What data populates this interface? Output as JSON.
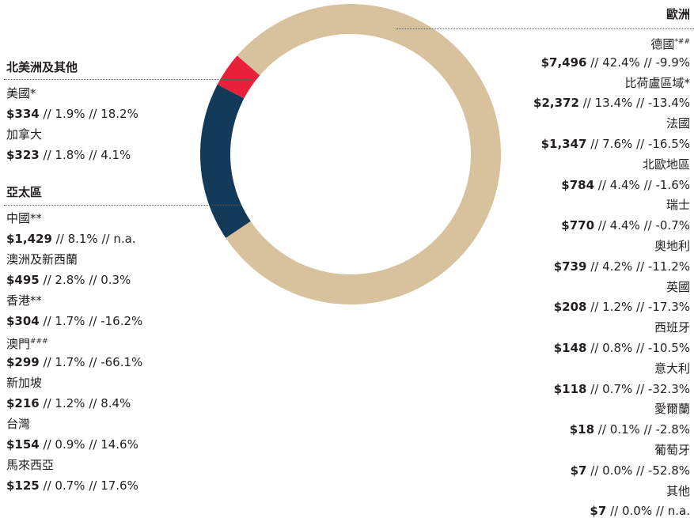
{
  "chart_data": {
    "type": "pie",
    "donut": true,
    "categories": [
      "歐洲",
      "亞太區",
      "北美洲及其他"
    ],
    "values": [
      79.2,
      17.1,
      3.7
    ],
    "colors": [
      "#d8c29d",
      "#143a5a",
      "#e8203a"
    ],
    "separator": "//",
    "groups": [
      {
        "items": [
          {
            "name": "德國",
            "sup": "*##",
            "amount": "$7,496",
            "share": "42.4%",
            "change": "-9.9%"
          },
          {
            "name": "比荷盧區域*",
            "amount": "$2,372",
            "share": "13.4%",
            "change": "-13.4%"
          },
          {
            "name": "法國",
            "amount": "$1,347",
            "share": "7.6%",
            "change": "-16.5%"
          },
          {
            "name": "北歐地區",
            "amount": "$784",
            "share": "4.4%",
            "change": "-1.6%"
          },
          {
            "name": "瑞士",
            "amount": "$770",
            "share": "4.4%",
            "change": "-0.7%"
          },
          {
            "name": "奧地利",
            "amount": "$739",
            "share": "4.2%",
            "change": "-11.2%"
          },
          {
            "name": "英國",
            "amount": "$208",
            "share": "1.2%",
            "change": "-17.3%"
          },
          {
            "name": "西班牙",
            "amount": "$148",
            "share": "0.8%",
            "change": "-10.5%"
          },
          {
            "name": "意大利",
            "amount": "$118",
            "share": "0.7%",
            "change": "-32.3%"
          },
          {
            "name": "愛爾蘭",
            "amount": "$18",
            "share": "0.1%",
            "change": "-2.8%"
          },
          {
            "name": "葡萄牙",
            "amount": "$7",
            "share": "0.0%",
            "change": "-52.8%"
          },
          {
            "name": "其他",
            "amount": "$7",
            "share": "0.0%",
            "change": "n.a."
          }
        ]
      },
      {
        "items": [
          {
            "name": "中國**",
            "amount": "$1,429",
            "share": "8.1%",
            "change": "n.a."
          },
          {
            "name": "澳洲及新西蘭",
            "amount": "$495",
            "share": "2.8%",
            "change": "0.3%"
          },
          {
            "name": "香港**",
            "amount": "$304",
            "share": "1.7%",
            "change": "-16.2%"
          },
          {
            "name": "澳門",
            "sup": "###",
            "amount": "$299",
            "share": "1.7%",
            "change": "-66.1%"
          },
          {
            "name": "新加坡",
            "amount": "$216",
            "share": "1.2%",
            "change": "8.4%"
          },
          {
            "name": "台灣",
            "amount": "$154",
            "share": "0.9%",
            "change": "14.6%"
          },
          {
            "name": "馬來西亞",
            "amount": "$125",
            "share": "0.7%",
            "change": "17.6%"
          }
        ]
      },
      {
        "items": [
          {
            "name": "美國*",
            "amount": "$334",
            "share": "1.9%",
            "change": "18.2%"
          },
          {
            "name": "加拿大",
            "amount": "$323",
            "share": "1.8%",
            "change": "4.1%"
          }
        ]
      }
    ]
  }
}
